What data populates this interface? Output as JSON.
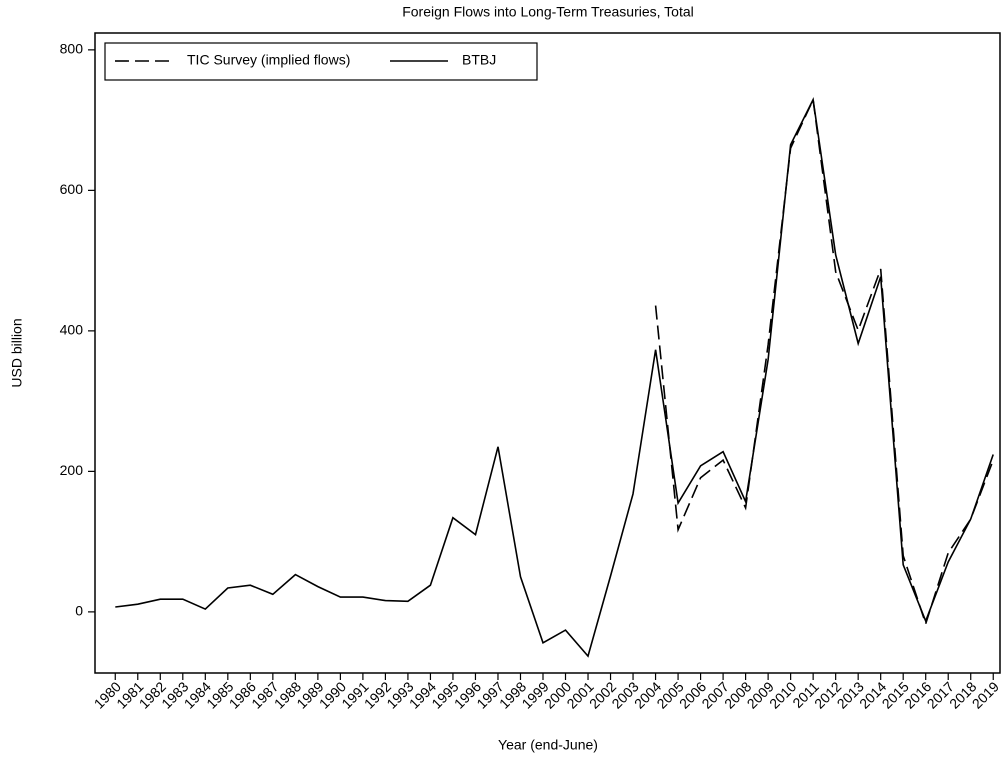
{
  "chart_data": {
    "type": "line",
    "title": "Foreign Flows into Long-Term Treasuries, Total",
    "xlabel": "Year (end-June)",
    "ylabel": "USD billion",
    "x": [
      1980,
      1981,
      1982,
      1983,
      1984,
      1985,
      1986,
      1987,
      1988,
      1989,
      1990,
      1991,
      1992,
      1993,
      1994,
      1995,
      1996,
      1997,
      1998,
      1999,
      2000,
      2001,
      2002,
      2003,
      2004,
      2005,
      2006,
      2007,
      2008,
      2009,
      2010,
      2011,
      2012,
      2013,
      2014,
      2015,
      2016,
      2017,
      2018,
      2019
    ],
    "series": [
      {
        "name": "TIC Survey (implied flows)",
        "color": "#000000",
        "linestyle": "dashed",
        "values": [
          null,
          null,
          null,
          null,
          null,
          null,
          null,
          null,
          null,
          null,
          null,
          null,
          null,
          null,
          null,
          null,
          null,
          null,
          null,
          null,
          null,
          null,
          null,
          null,
          436,
          117,
          191,
          216,
          148,
          380,
          660,
          729,
          484,
          401,
          488,
          80,
          -17,
          84,
          132,
          216
        ]
      },
      {
        "name": "BTBJ",
        "color": "#000000",
        "linestyle": "solid",
        "values": [
          7,
          11,
          18,
          18,
          4,
          34,
          38,
          25,
          53,
          36,
          21,
          21,
          16,
          15,
          38,
          134,
          110,
          235,
          50,
          -44,
          -26,
          -63,
          51,
          168,
          373,
          155,
          208,
          228,
          157,
          359,
          665,
          729,
          508,
          382,
          477,
          67,
          -13,
          71,
          132,
          224
        ]
      }
    ],
    "xlim": [
      1979.1,
      2019.3
    ],
    "xticks": [
      1980,
      1981,
      1982,
      1983,
      1984,
      1985,
      1986,
      1987,
      1988,
      1989,
      1990,
      1991,
      1992,
      1993,
      1994,
      1995,
      1996,
      1997,
      1998,
      1999,
      2000,
      2001,
      2002,
      2003,
      2004,
      2005,
      2006,
      2007,
      2008,
      2009,
      2010,
      2011,
      2012,
      2013,
      2014,
      2015,
      2016,
      2017,
      2018,
      2019
    ],
    "ylim": [
      -87,
      824
    ],
    "yticks": [
      0,
      200,
      400,
      600,
      800
    ],
    "legend": "upper left",
    "grid": false
  }
}
